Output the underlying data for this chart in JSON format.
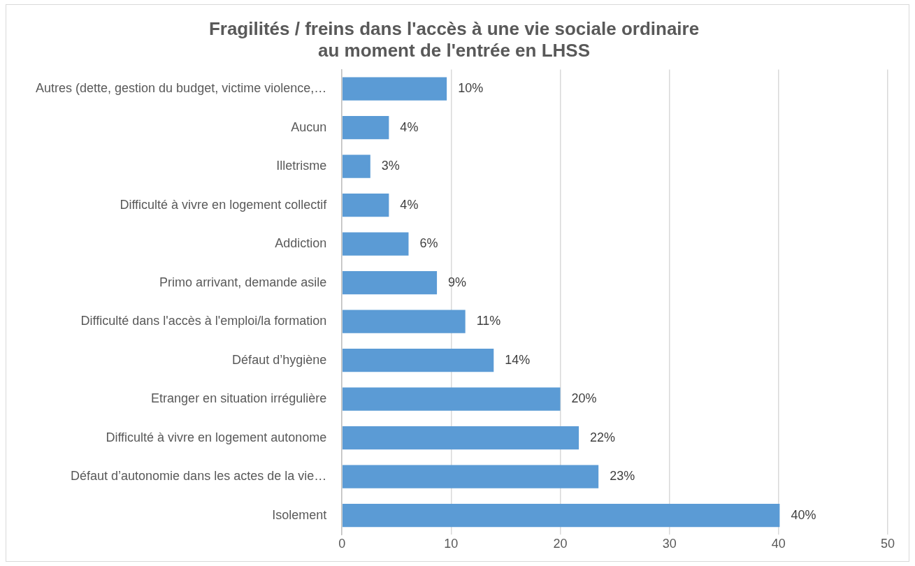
{
  "chart_data": {
    "type": "bar",
    "orientation": "horizontal",
    "title": "Fragilités / freins dans l'accès à une vie sociale ordinaire\nau moment de l'entrée en LHSS",
    "categories": [
      "Autres (dette, gestion du budget, victime violence,…",
      "Aucun",
      "Illetrisme",
      "Difficulté à vivre en logement collectif",
      "Addiction",
      "Primo arrivant, demande asile",
      "Difficulté dans l'accès à l'emploi/la formation",
      "Défaut d’hygiène",
      "Etranger en situation irrégulière",
      "Difficulté à vivre en logement autonome",
      "Défaut d’autonomie dans les actes de la vie…",
      "Isolement"
    ],
    "values": [
      9.6,
      4.3,
      2.6,
      4.3,
      6.1,
      8.7,
      11.3,
      13.9,
      20.0,
      21.7,
      23.5,
      40.1
    ],
    "value_labels": [
      "10%",
      "4%",
      "3%",
      "4%",
      "6%",
      "9%",
      "11%",
      "14%",
      "20%",
      "22%",
      "23%",
      "40%"
    ],
    "color": "#5b9bd5",
    "xlim": [
      0,
      50
    ],
    "xticks": [
      0,
      10,
      20,
      30,
      40,
      50
    ],
    "grid": "x",
    "legend": false
  }
}
